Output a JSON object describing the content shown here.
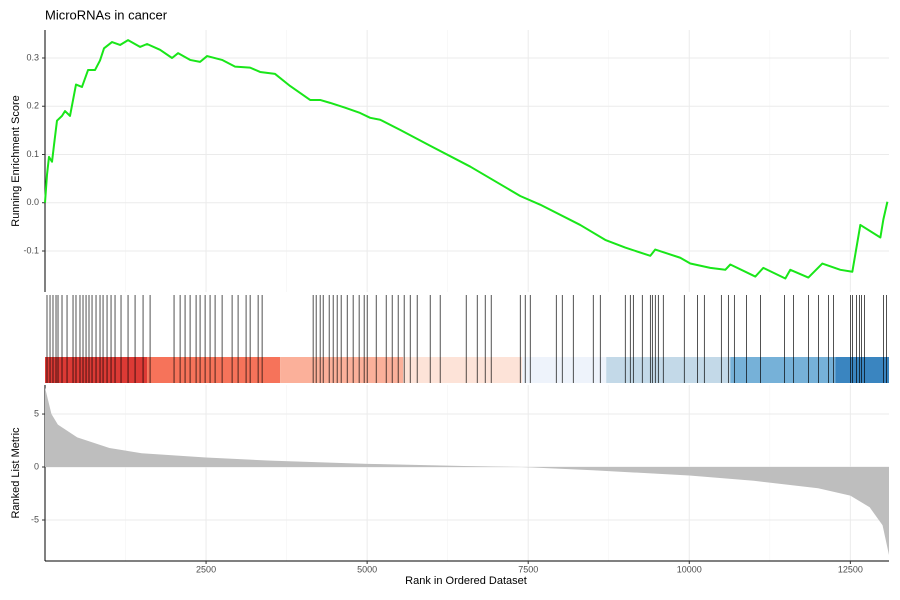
{
  "chart_data": {
    "type": "gsea",
    "title": "MicroRNAs in cancer",
    "xlabel": "Rank in Ordered Dataset",
    "xlim": [
      0,
      13100
    ],
    "xticks": [
      2500,
      5000,
      7500,
      10000,
      12500
    ],
    "grid": true,
    "running_score": {
      "ylabel": "Running Enrichment Score",
      "color": "#19e619",
      "ylim": [
        -0.185,
        0.358
      ],
      "yticks": [
        0.3,
        0.2,
        0.1,
        {
          "value": 0,
          "label": "0.0"
        },
        -0.1
      ],
      "x": [
        0,
        31,
        62,
        109,
        140,
        186,
        264,
        311,
        388,
        481,
        574,
        668,
        776,
        854,
        916,
        1040,
        1165,
        1289,
        1475,
        1584,
        1786,
        1972,
        2065,
        2252,
        2407,
        2516,
        2748,
        2950,
        3183,
        3339,
        3571,
        3804,
        4115,
        4270,
        4425,
        4658,
        4891,
        5047,
        5202,
        5512,
        5978,
        6599,
        7376,
        7686,
        8307,
        8696,
        9006,
        9395,
        9472,
        9860,
        10016,
        10326,
        10559,
        10637,
        11025,
        11149,
        11491,
        11568,
        11848,
        12065,
        12345,
        12531,
        12655,
        12966,
        13012,
        13075
      ],
      "values": [
        0,
        0.058,
        0.095,
        0.085,
        0.12,
        0.17,
        0.18,
        0.19,
        0.18,
        0.245,
        0.24,
        0.275,
        0.275,
        0.295,
        0.32,
        0.333,
        0.327,
        0.337,
        0.323,
        0.329,
        0.317,
        0.3,
        0.31,
        0.296,
        0.292,
        0.304,
        0.296,
        0.282,
        0.28,
        0.271,
        0.267,
        0.242,
        0.213,
        0.213,
        0.207,
        0.197,
        0.186,
        0.176,
        0.172,
        0.151,
        0.118,
        0.075,
        0.014,
        -0.004,
        -0.046,
        -0.077,
        -0.093,
        -0.11,
        -0.097,
        -0.114,
        -0.126,
        -0.135,
        -0.139,
        -0.128,
        -0.153,
        -0.135,
        -0.157,
        -0.139,
        -0.155,
        -0.126,
        -0.139,
        -0.143,
        -0.046,
        -0.072,
        -0.035,
        0.002
      ]
    },
    "hits": [
      31,
      78,
      124,
      171,
      202,
      264,
      342,
      435,
      481,
      543,
      590,
      637,
      683,
      730,
      792,
      854,
      901,
      963,
      1025,
      1087,
      1180,
      1289,
      1398,
      1522,
      1631,
      2003,
      2097,
      2174,
      2252,
      2345,
      2407,
      2485,
      2562,
      2640,
      2749,
      2904,
      2997,
      3121,
      3184,
      3308,
      3370,
      4162,
      4209,
      4271,
      4318,
      4411,
      4473,
      4535,
      4597,
      4691,
      4783,
      4876,
      4954,
      5001,
      5141,
      5296,
      5389,
      5482,
      5575,
      5669,
      5777,
      5979,
      6134,
      6538,
      6709,
      6833,
      6926,
      7377,
      7454,
      7532,
      7936,
      8029,
      8200,
      8510,
      8619,
      9007,
      9085,
      9132,
      9271,
      9396,
      9427,
      9473,
      9520,
      9597,
      9923,
      10126,
      10234,
      10498,
      10607,
      10700,
      10887,
      11104,
      11477,
      11616,
      11849,
      12005,
      12160,
      12238,
      12502,
      12533,
      12595,
      12642,
      12673,
      12719,
      13014,
      13060
    ],
    "band_edges": [
      0,
      1584,
      3649,
      5559,
      7407,
      8711,
      10637,
      12267,
      13100
    ],
    "band_colors": [
      "#dc3a35",
      "#f6735a",
      "#fbb09a",
      "#fde3d8",
      "#eef3fb",
      "#c3d9e8",
      "#76b1d8",
      "#3a85c0"
    ],
    "ranked_metric": {
      "ylabel": "Ranked List Metric",
      "color": "#bebebe",
      "ylim": [
        -8.87,
        7.74
      ],
      "yticks": [
        5,
        0,
        -5
      ],
      "x": [
        0,
        100,
        200,
        500,
        1000,
        1500,
        2500,
        3500,
        5000,
        6500,
        7400,
        8500,
        10000,
        11000,
        12000,
        12500,
        12800,
        13000,
        13100
      ],
      "values": [
        7.5,
        5.0,
        4.0,
        2.8,
        1.8,
        1.3,
        0.9,
        0.6,
        0.3,
        0.1,
        0,
        -0.3,
        -0.8,
        -1.3,
        -2.0,
        -2.7,
        -3.8,
        -5.5,
        -8.3
      ]
    }
  }
}
